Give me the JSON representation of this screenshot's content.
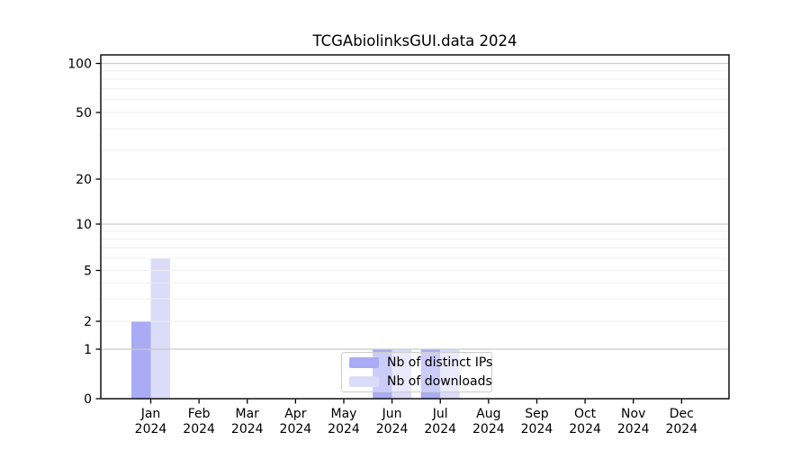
{
  "chart_data": {
    "type": "bar",
    "title": "TCGAbiolinksGUI.data 2024",
    "categories": [
      "Jan",
      "Feb",
      "Mar",
      "Apr",
      "May",
      "Jun",
      "Jul",
      "Aug",
      "Sep",
      "Oct",
      "Nov",
      "Dec"
    ],
    "category_year": "2024",
    "series": [
      {
        "name": "Nb of distinct IPs",
        "color": "#a9abf5",
        "values": [
          2,
          0,
          0,
          0,
          0,
          1,
          1,
          0,
          0,
          0,
          0,
          0
        ]
      },
      {
        "name": "Nb of downloads",
        "color": "#dbdcf9",
        "values": [
          6,
          0,
          0,
          0,
          0,
          1,
          1,
          0,
          0,
          0,
          0,
          0
        ]
      }
    ],
    "y_ticks": [
      0,
      1,
      2,
      5,
      10,
      20,
      50,
      100
    ],
    "y_minor_gridlines": [
      2,
      3,
      4,
      5,
      6,
      7,
      8,
      9,
      20,
      30,
      40,
      50,
      60,
      70,
      80,
      90
    ],
    "y_major_gridlines": [
      1,
      10,
      100
    ],
    "ylim": [
      0,
      100
    ],
    "scale": "log-like",
    "grid": true,
    "legend_position": "bottom-center",
    "style": {
      "grid_minor_color": "#efefef",
      "grid_major_color": "#c9c9c9",
      "axis_color": "#000000",
      "legend_border_color": "#cccccc"
    }
  }
}
